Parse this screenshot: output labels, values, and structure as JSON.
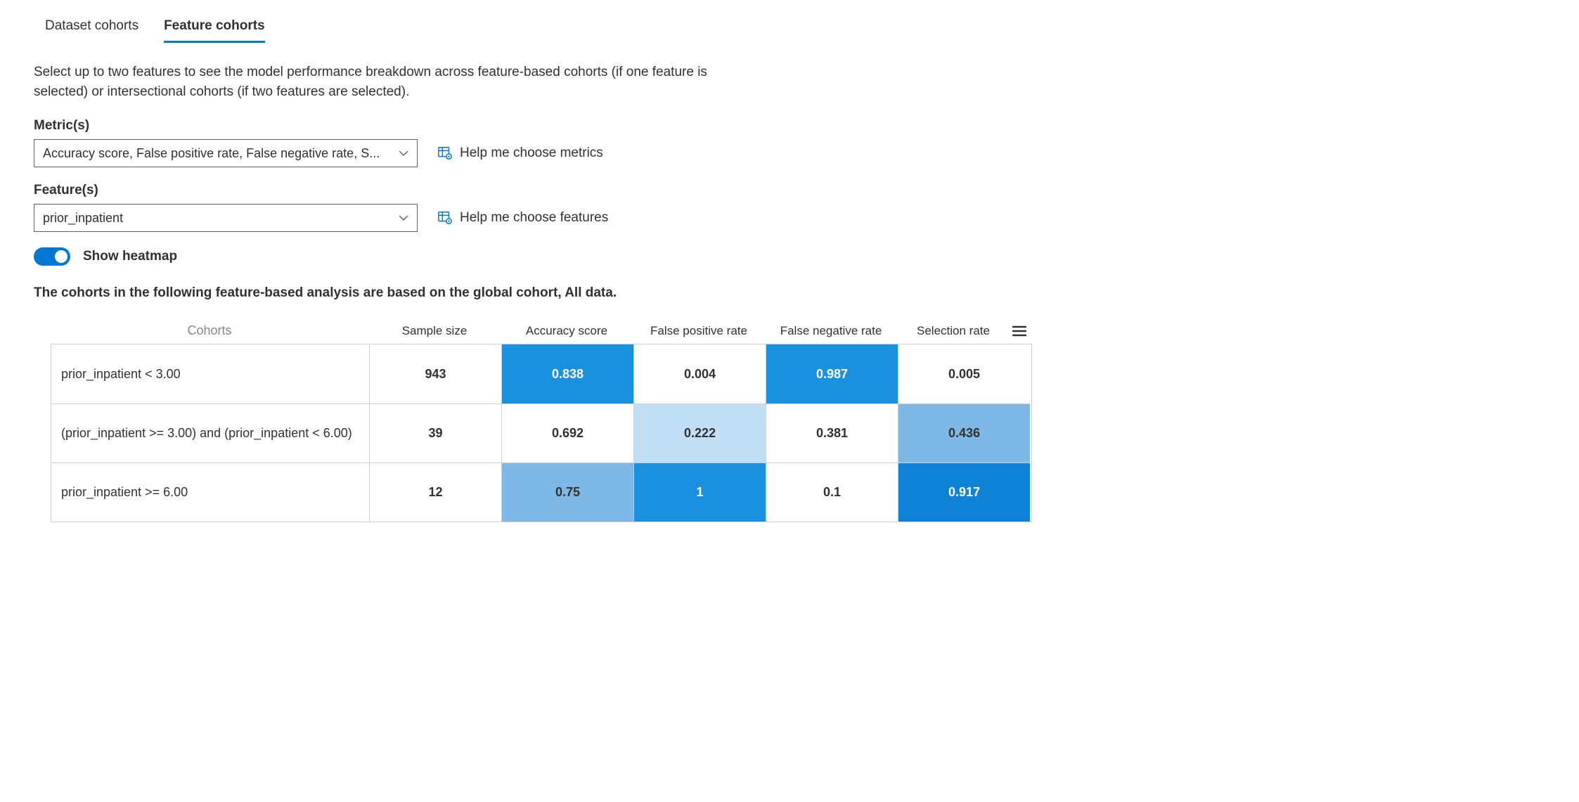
{
  "tabs": {
    "dataset": "Dataset cohorts",
    "feature": "Feature cohorts",
    "active": "feature"
  },
  "description": "Select up to two features to see the model performance breakdown across feature-based cohorts (if one feature is selected) or intersectional cohorts (if two features are selected).",
  "metrics": {
    "label": "Metric(s)",
    "value": "Accuracy score, False positive rate, False negative rate, S...",
    "help": "Help me choose metrics"
  },
  "features": {
    "label": "Feature(s)",
    "value": "prior_inpatient",
    "help": "Help me choose features"
  },
  "toggle": {
    "label": "Show heatmap",
    "on": true
  },
  "analysis_note": "The cohorts in the following feature-based analysis are based on the global cohort, All data.",
  "heatmap": {
    "columns": [
      "Cohorts",
      "Sample size",
      "Accuracy score",
      "False positive rate",
      "False negative rate",
      "Selection rate"
    ],
    "colors": {
      "none": "#ffffff",
      "light": "#c1dff5",
      "mid": "#7eb8e6",
      "strong": "#1991df",
      "deep": "#0d82d6"
    },
    "rows": [
      {
        "label": "prior_inpatient < 3.00",
        "cells": [
          {
            "value": "943",
            "shade": "none",
            "bold": true
          },
          {
            "value": "0.838",
            "shade": "strong",
            "bold": true,
            "white": true
          },
          {
            "value": "0.004",
            "shade": "none",
            "bold": true
          },
          {
            "value": "0.987",
            "shade": "strong",
            "bold": true,
            "white": true
          },
          {
            "value": "0.005",
            "shade": "none",
            "bold": true
          }
        ]
      },
      {
        "label": "(prior_inpatient >= 3.00) and (prior_inpatient < 6.00)",
        "cells": [
          {
            "value": "39",
            "shade": "none",
            "bold": true
          },
          {
            "value": "0.692",
            "shade": "none",
            "bold": true
          },
          {
            "value": "0.222",
            "shade": "light",
            "bold": true
          },
          {
            "value": "0.381",
            "shade": "none",
            "bold": true
          },
          {
            "value": "0.436",
            "shade": "mid",
            "bold": true
          }
        ]
      },
      {
        "label": "prior_inpatient >= 6.00",
        "cells": [
          {
            "value": "12",
            "shade": "none",
            "bold": true
          },
          {
            "value": "0.75",
            "shade": "mid",
            "bold": true
          },
          {
            "value": "1",
            "shade": "strong",
            "bold": true,
            "white": true
          },
          {
            "value": "0.1",
            "shade": "none",
            "bold": true
          },
          {
            "value": "0.917",
            "shade": "deep",
            "bold": true,
            "white": true
          }
        ]
      }
    ]
  }
}
